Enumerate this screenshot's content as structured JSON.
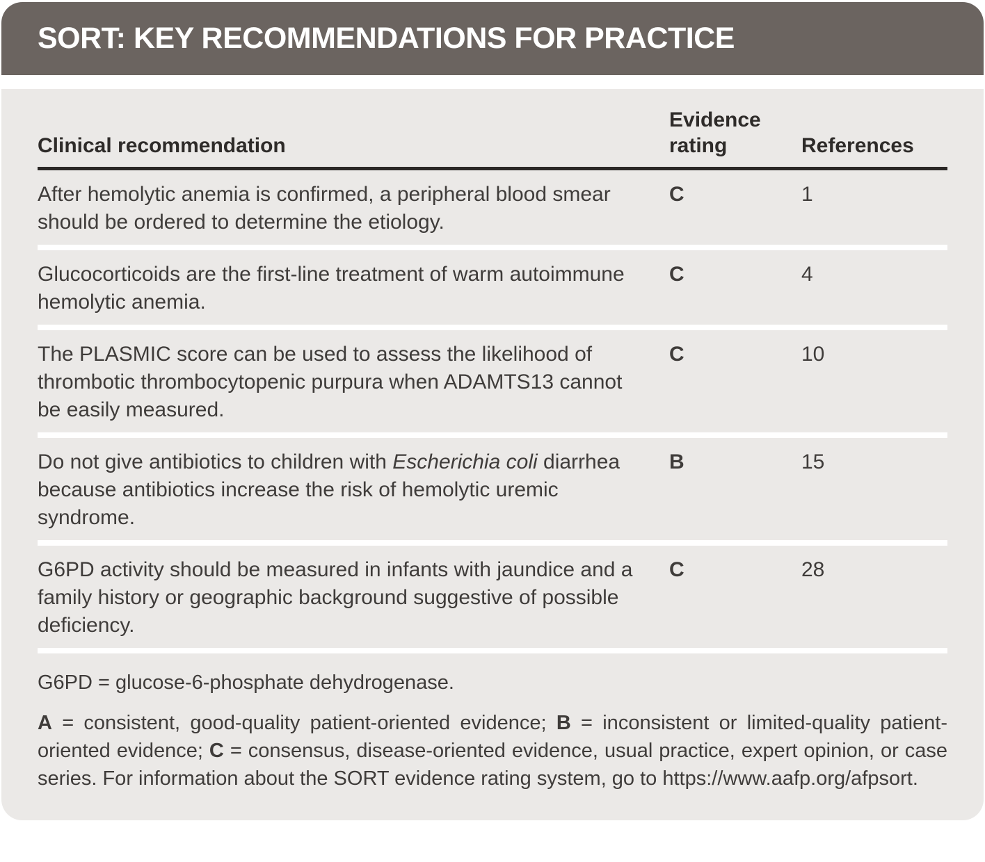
{
  "header": {
    "title": "SORT: KEY RECOMMENDATIONS FOR PRACTICE"
  },
  "table": {
    "columns": {
      "clinical": "Clinical recommendation",
      "evidence": "Evidence rating",
      "references": "References"
    },
    "rows": [
      {
        "recommendation": "After hemolytic anemia is confirmed, a peripheral blood smear should be ordered to determine the etiology.",
        "evidence_rating": "C",
        "references": "1"
      },
      {
        "recommendation": "Glucocorticoids are the first-line treatment of warm autoimmune hemolytic anemia.",
        "evidence_rating": "C",
        "references": "4"
      },
      {
        "recommendation": "The PLASMIC score can be used to assess the likelihood of thrombotic thrombocytopenic purpura when ADAMTS13 cannot be easily measured.",
        "evidence_rating": "C",
        "references": "10"
      },
      {
        "recommendation_parts": {
          "before": "Do not give antibiotics to children with ",
          "italic": "Escherichia coli",
          "after": " diarrhea because antibiotics increase the risk of hemolytic uremic syndrome."
        },
        "evidence_rating": "B",
        "references": "15"
      },
      {
        "recommendation": "G6PD activity should be measured in infants with jaundice and a family history or geographic background suggestive of possible deficiency.",
        "evidence_rating": "C",
        "references": "28"
      }
    ]
  },
  "footnotes": {
    "abbreviation": "G6PD = glucose-6-phosphate dehydrogenase.",
    "legend": {
      "a_label": "A",
      "a_text": " = consistent, good-quality patient-oriented evidence; ",
      "b_label": "B",
      "b_text": " = inconsistent or limited-quality patient-oriented evidence; ",
      "c_label": "C",
      "c_text": " = consensus, disease-oriented evidence, usual practice, expert opinion, or case series. For information about the SORT evidence rating system, go to https://www.aafp.org/afpsort."
    }
  },
  "colors": {
    "header_bar": "#6b6460",
    "table_body_background": "#ebe9e7",
    "header_rule": "#2b2826",
    "text": "#3f3c3a",
    "row_separator": "#ffffff",
    "title_text": "#ffffff"
  }
}
